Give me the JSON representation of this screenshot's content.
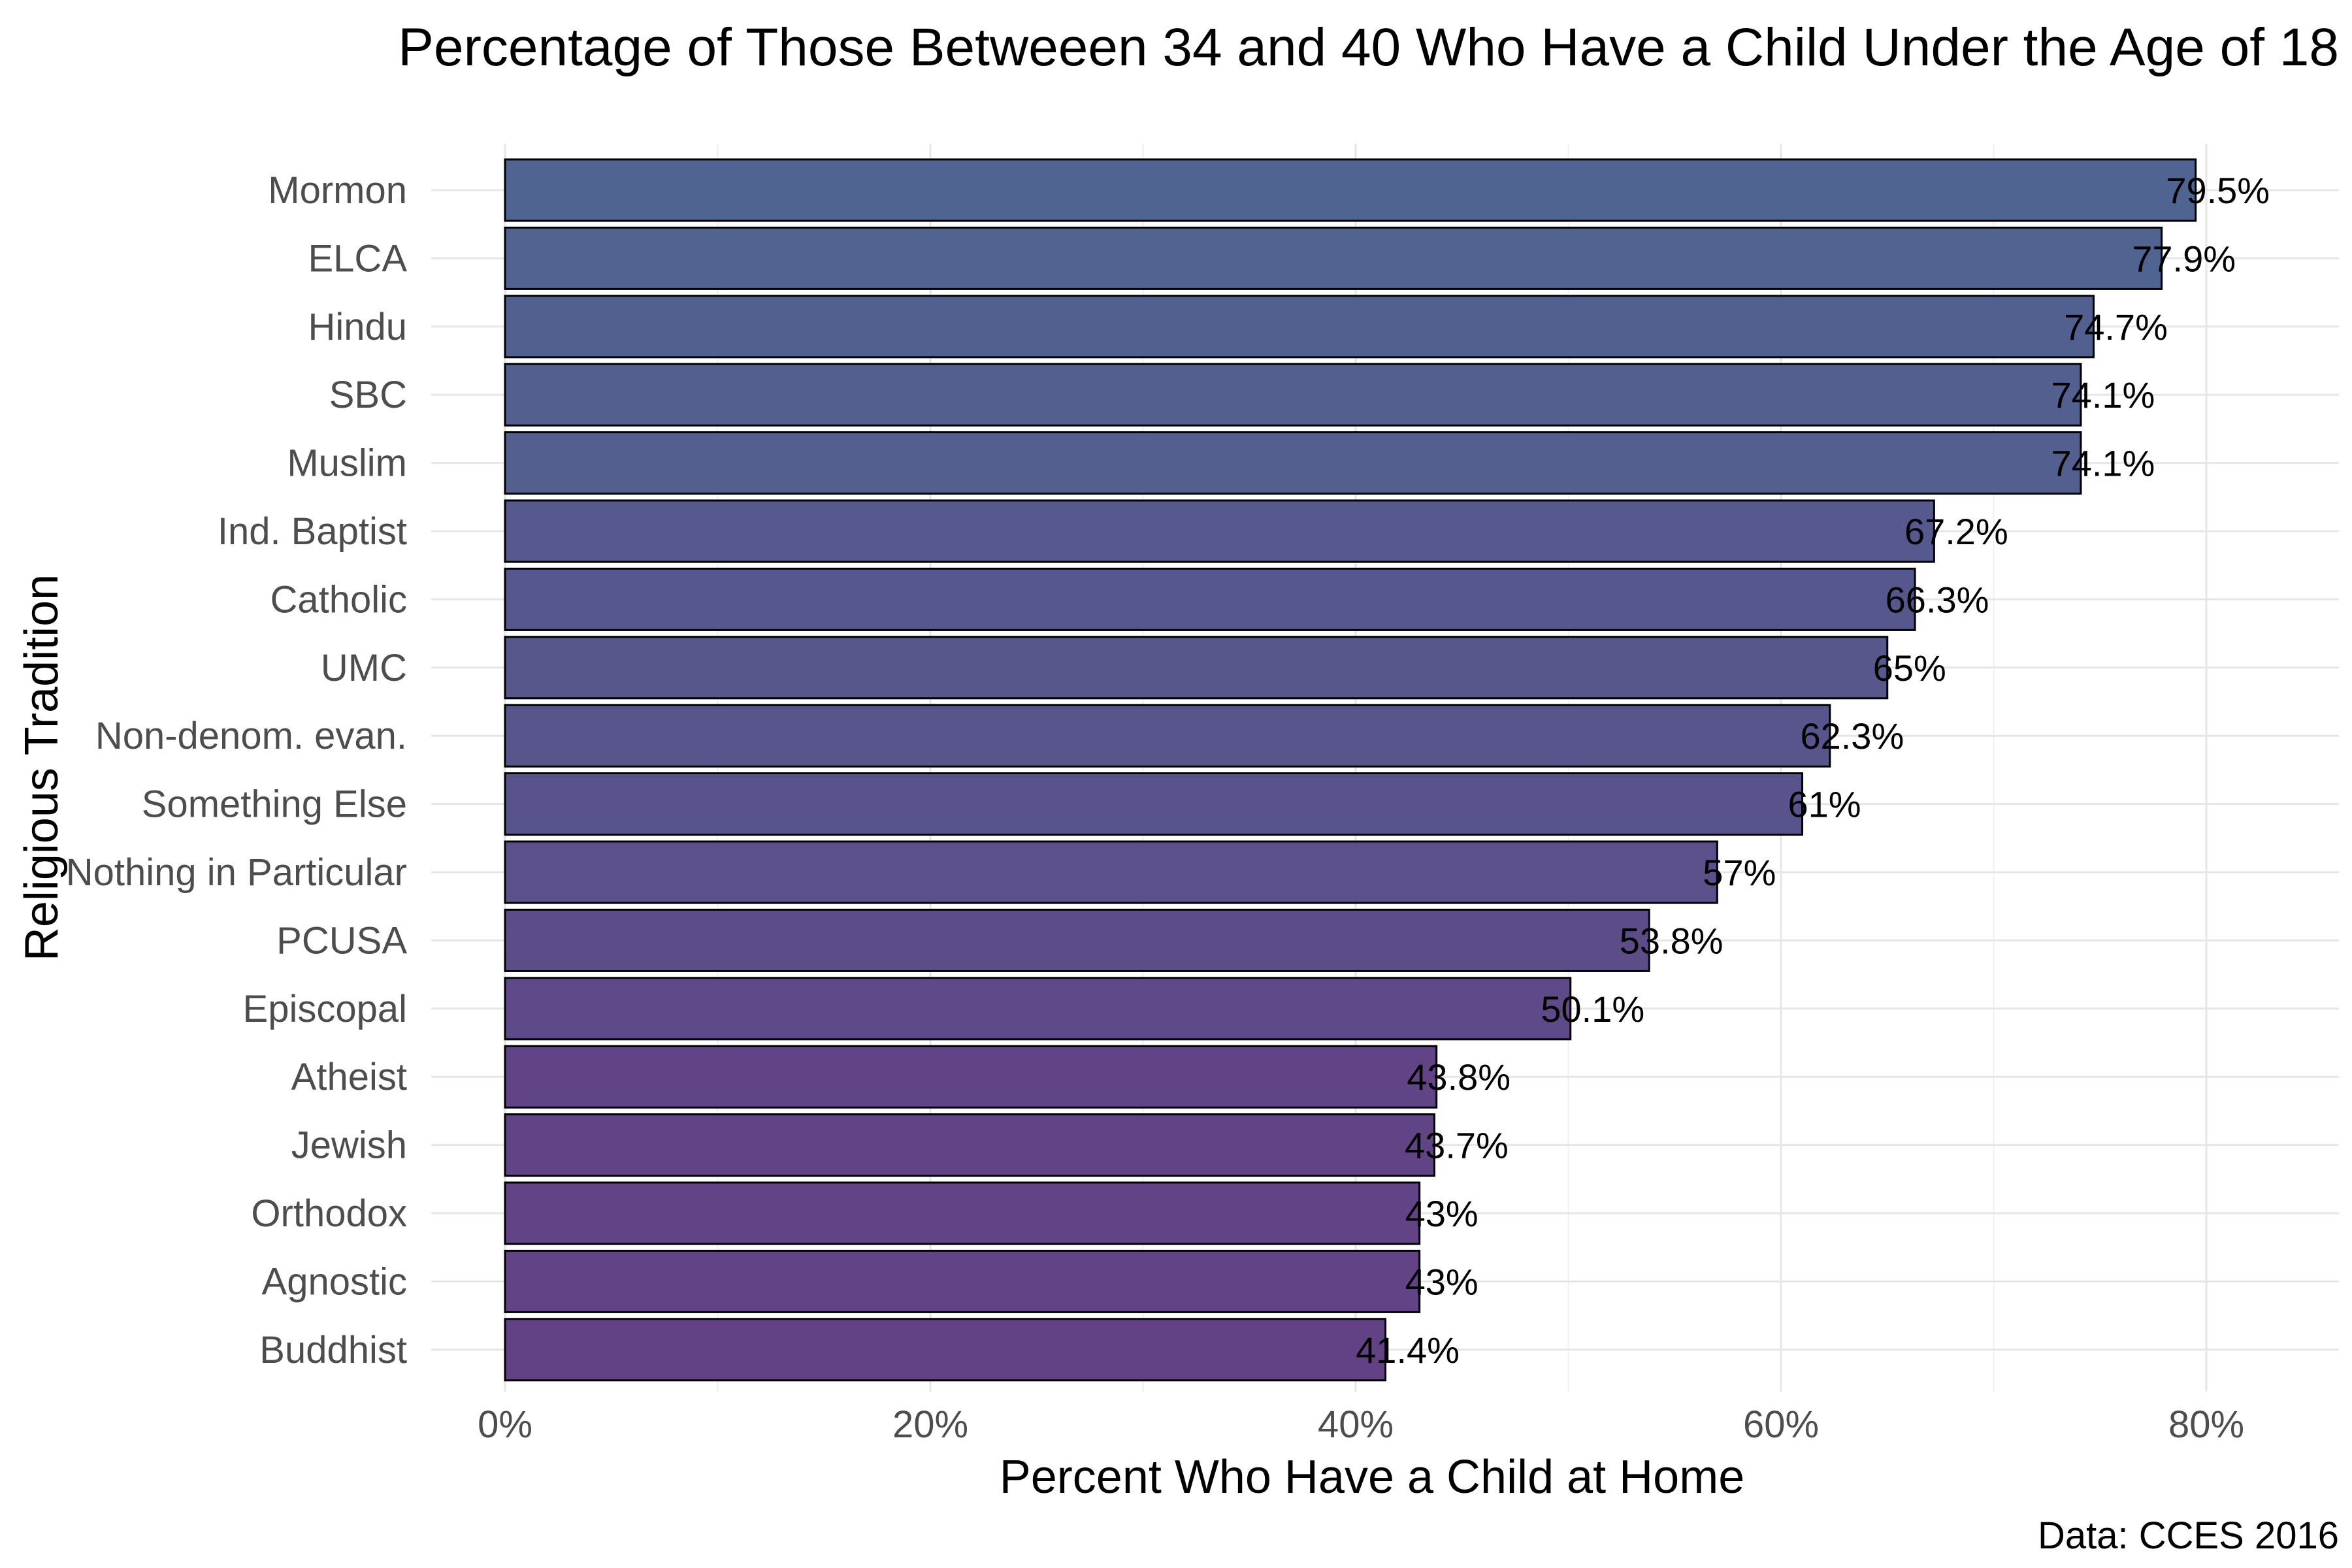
{
  "chart_data": {
    "type": "bar",
    "orientation": "horizontal",
    "title": "Percentage of Those Betweeen 34 and 40 Who Have a Child Under the Age of 18",
    "xlabel": "Percent Who Have a Child at Home",
    "ylabel": "Religious Tradition",
    "caption": "Data: CCES 2016",
    "categories": [
      "Mormon",
      "ELCA",
      "Hindu",
      "SBC",
      "Muslim",
      "Ind. Baptist",
      "Catholic",
      "UMC",
      "Non-denom. evan.",
      "Something Else",
      "Nothing in Particular",
      "PCUSA",
      "Episcopal",
      "Atheist",
      "Jewish",
      "Orthodox",
      "Agnostic",
      "Buddhist"
    ],
    "values": [
      79.5,
      77.9,
      74.7,
      74.1,
      74.1,
      67.2,
      66.3,
      65,
      62.3,
      61,
      57,
      53.8,
      50.1,
      43.8,
      43.7,
      43,
      43,
      41.4
    ],
    "value_labels": [
      "79.5%",
      "77.9%",
      "74.7%",
      "74.1%",
      "74.1%",
      "67.2%",
      "66.3%",
      "65%",
      "62.3%",
      "61%",
      "57%",
      "53.8%",
      "50.1%",
      "43.8%",
      "43.7%",
      "43%",
      "43%",
      "41.4%"
    ],
    "xlim": [
      0,
      86
    ],
    "x_ticks": [
      0,
      20,
      40,
      60,
      80
    ],
    "x_tick_labels": [
      "0%",
      "20%",
      "40%",
      "60%",
      "80%"
    ],
    "grid": true,
    "legend": "none",
    "bar_color_high": "#506491",
    "bar_color_low": "#624285",
    "bar_outline": "#000000"
  }
}
